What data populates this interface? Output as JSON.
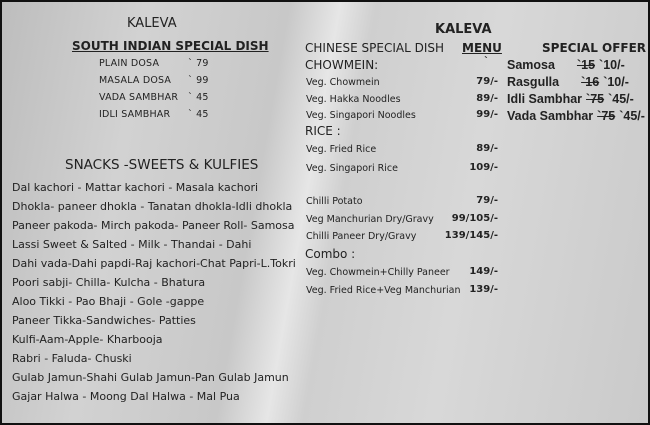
{
  "left": {
    "title": "KALEVA",
    "south_heading": "SOUTH INDIAN SPECIAL DISH",
    "south_items": [
      {
        "name": "PLAIN DOSA",
        "price": "` 79"
      },
      {
        "name": "MASALA DOSA",
        "price": "` 99"
      },
      {
        "name": "VADA SAMBHAR",
        "price": "` 45"
      },
      {
        "name": "IDLI SAMBHAR",
        "price": "` 45"
      }
    ],
    "snacks_heading": "SNACKS -SWEETS & KULFIES",
    "snacks": [
      "Dal kachori - Mattar kachori - Masala kachori",
      "Dhokla- paneer dhokla - Tanatan dhokla-Idli dhokla",
      "Paneer pakoda- Mirch pakoda- Paneer Roll- Samosa",
      "Lassi Sweet & Salted  - Milk - Thandai - Dahi",
      "Dahi vada-Dahi papdi-Raj kachori-Chat Papri-L.Tokri",
      "Poori sabji- Chilla- Kulcha - Bhatura",
      "Aloo Tikki - Pao Bhaji - Gole -gappe",
      "Paneer Tikka-Sandwiches- Patties",
      "Kulfi-Aam-Apple- Kharbooja",
      "Rabri -  Faluda- Chuski",
      "Gulab Jamun-Shahi Gulab Jamun-Pan Gulab Jamun",
      "Gajar Halwa - Moong Dal Halwa  - Mal Pua"
    ]
  },
  "right": {
    "title": "KALEVA",
    "chinese_heading": "CHINESE SPECIAL DISH",
    "menu_heading": "MENU",
    "offer_heading": "SPECIAL OFFER",
    "currency_mark": "`",
    "chowmein_heading": "CHOWMEIN:",
    "chowmein": [
      {
        "name": "Veg. Chowmein",
        "price": "79/-"
      },
      {
        "name": "Veg. Hakka Noodles",
        "price": "89/-"
      },
      {
        "name": "Veg. Singapori Noodles",
        "price": "99/-"
      }
    ],
    "rice_heading": "RICE :",
    "rice": [
      {
        "name": "Veg. Fried Rice",
        "price": "89/-"
      },
      {
        "name": "Veg. Singapori Rice",
        "price": "109/-"
      }
    ],
    "others": [
      {
        "name": "Chilli Potato",
        "price": "79/-"
      },
      {
        "name": "Veg Manchurian Dry/Gravy",
        "price": "99/105/-"
      },
      {
        "name": "Chilli Paneer Dry/Gravy",
        "price": "139/145/-"
      }
    ],
    "combo_heading": "Combo :",
    "combo": [
      {
        "name": "Veg. Chowmein+Chilly Paneer",
        "price": "149/-"
      },
      {
        "name": "Veg. Fried Rice+Veg Manchurian",
        "price": "139/-"
      }
    ],
    "offers": [
      {
        "name": "Samosa",
        "old": "`15",
        "new": "`10/-"
      },
      {
        "name": "Rasgulla",
        "old": "`16",
        "new": "`10/-"
      },
      {
        "name": "Idli Sambhar",
        "old": "`75",
        "new": "`45/-"
      },
      {
        "name": "Vada Sambhar",
        "old": "`75",
        "new": "`45/-"
      }
    ]
  }
}
